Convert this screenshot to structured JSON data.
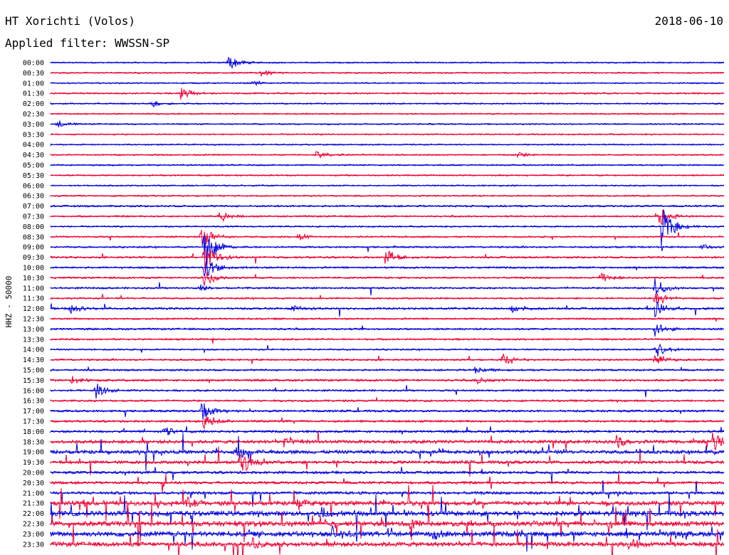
{
  "header": {
    "station": "HT Xorichti (Volos)",
    "date": "2018-06-10",
    "filter_label": "Applied filter: WWSSN-SP"
  },
  "colors": {
    "blue": "#0000dd",
    "red": "#ee0033"
  },
  "chart_data": {
    "type": "line",
    "title": "HT Xorichti (Volos)",
    "ylabel": "HHZ - 50000",
    "line_labels": [
      "00:00",
      "00:30",
      "01:00",
      "01:30",
      "02:00",
      "02:30",
      "03:00",
      "03:30",
      "04:00",
      "04:30",
      "05:00",
      "05:30",
      "06:00",
      "06:30",
      "07:00",
      "07:30",
      "08:00",
      "08:30",
      "09:00",
      "09:30",
      "10:00",
      "10:30",
      "11:00",
      "11:30",
      "12:00",
      "12:30",
      "13:00",
      "13:30",
      "14:00",
      "14:30",
      "15:00",
      "15:30",
      "16:00",
      "16:30",
      "17:00",
      "17:30",
      "18:00",
      "18:30",
      "19:00",
      "19:30",
      "20:00",
      "20:30",
      "21:00",
      "21:30",
      "22:00",
      "22:30",
      "23:00",
      "23:30"
    ],
    "line_colors_cycle": [
      "blue",
      "red"
    ],
    "minutes_per_line": 30,
    "events": [
      {
        "line": "00:00",
        "minute": 7.9,
        "amp": 12
      },
      {
        "line": "00:30",
        "minute": 9.3,
        "amp": 7
      },
      {
        "line": "01:00",
        "minute": 9.0,
        "amp": 4
      },
      {
        "line": "01:30",
        "minute": 5.8,
        "amp": 9
      },
      {
        "line": "02:00",
        "minute": 4.5,
        "amp": 6
      },
      {
        "line": "03:00",
        "minute": 0.3,
        "amp": 6
      },
      {
        "line": "04:30",
        "minute": 11.8,
        "amp": 7
      },
      {
        "line": "04:30",
        "minute": 20.8,
        "amp": 5
      },
      {
        "line": "07:30",
        "minute": 7.5,
        "amp": 7
      },
      {
        "line": "07:30",
        "minute": 27.0,
        "amp": 18
      },
      {
        "line": "08:00",
        "minute": 27.2,
        "amp": 30
      },
      {
        "line": "08:30",
        "minute": 6.7,
        "amp": 18
      },
      {
        "line": "08:30",
        "minute": 11.0,
        "amp": 6
      },
      {
        "line": "09:00",
        "minute": 6.8,
        "amp": 32
      },
      {
        "line": "09:00",
        "minute": 29.0,
        "amp": 5
      },
      {
        "line": "09:30",
        "minute": 6.8,
        "amp": 24
      },
      {
        "line": "09:30",
        "minute": 14.9,
        "amp": 14
      },
      {
        "line": "10:00",
        "minute": 6.8,
        "amp": 20
      },
      {
        "line": "10:30",
        "minute": 6.8,
        "amp": 14
      },
      {
        "line": "10:30",
        "minute": 24.5,
        "amp": 8
      },
      {
        "line": "11:00",
        "minute": 26.9,
        "amp": 16
      },
      {
        "line": "11:00",
        "minute": 6.6,
        "amp": 5
      },
      {
        "line": "11:30",
        "minute": 26.9,
        "amp": 14
      },
      {
        "line": "12:00",
        "minute": 0.8,
        "amp": 8
      },
      {
        "line": "12:00",
        "minute": 10.7,
        "amp": 6
      },
      {
        "line": "12:00",
        "minute": 20.5,
        "amp": 7
      },
      {
        "line": "12:00",
        "minute": 26.9,
        "amp": 14
      },
      {
        "line": "13:00",
        "minute": 26.9,
        "amp": 12
      },
      {
        "line": "14:00",
        "minute": 26.9,
        "amp": 12
      },
      {
        "line": "14:30",
        "minute": 20.1,
        "amp": 12
      },
      {
        "line": "14:30",
        "minute": 26.9,
        "amp": 10
      },
      {
        "line": "15:00",
        "minute": 18.9,
        "amp": 6
      },
      {
        "line": "15:30",
        "minute": 0.9,
        "amp": 7
      },
      {
        "line": "15:30",
        "minute": 18.9,
        "amp": 6
      },
      {
        "line": "16:00",
        "minute": 2.0,
        "amp": 12
      },
      {
        "line": "17:00",
        "minute": 6.7,
        "amp": 16
      },
      {
        "line": "17:30",
        "minute": 6.8,
        "amp": 12
      },
      {
        "line": "18:00",
        "minute": 5.0,
        "amp": 8
      },
      {
        "line": "18:30",
        "minute": 10.4,
        "amp": 10
      },
      {
        "line": "18:30",
        "minute": 25.2,
        "amp": 12
      },
      {
        "line": "18:30",
        "minute": 29.5,
        "amp": 14
      },
      {
        "line": "19:00",
        "minute": 8.2,
        "amp": 14
      },
      {
        "line": "19:30",
        "minute": 8.4,
        "amp": 22
      },
      {
        "line": "21:30",
        "minute": 6.0,
        "amp": 10
      },
      {
        "line": "21:30",
        "minute": 11.0,
        "amp": 10
      },
      {
        "line": "22:00",
        "minute": 12.0,
        "amp": 10
      },
      {
        "line": "22:30",
        "minute": 16.0,
        "amp": 9
      },
      {
        "line": "23:00",
        "minute": 12.5,
        "amp": 12
      },
      {
        "line": "23:00",
        "minute": 17.0,
        "amp": 10
      },
      {
        "line": "23:30",
        "minute": 9.0,
        "amp": 9
      },
      {
        "line": "23:30",
        "minute": 25.8,
        "amp": 8
      }
    ],
    "noise_level": [
      1.2,
      1.2,
      1.2,
      1.4,
      1.2,
      1.2,
      1.2,
      1.2,
      1.2,
      1.2,
      1.3,
      1.3,
      1.2,
      1.3,
      1.6,
      1.4,
      1.3,
      1.4,
      1.5,
      1.6,
      1.6,
      1.5,
      1.6,
      1.5,
      1.8,
      1.5,
      1.6,
      1.5,
      1.4,
      1.5,
      1.6,
      1.8,
      1.6,
      1.7,
      1.8,
      1.8,
      2.0,
      2.8,
      3.0,
      2.6,
      2.2,
      2.2,
      2.4,
      3.6,
      4.0,
      4.0,
      4.2,
      3.8
    ],
    "spike_density": [
      0,
      0,
      0,
      0,
      0,
      0,
      0,
      0,
      0,
      0,
      0,
      0,
      0,
      0,
      0.2,
      0.2,
      0,
      0.1,
      0.2,
      0.3,
      0.2,
      0.3,
      0.4,
      0.3,
      0.6,
      0.4,
      0.3,
      0.2,
      0.2,
      0.3,
      0.3,
      0.3,
      0.3,
      0.3,
      0.5,
      0.6,
      0.8,
      1.6,
      2.0,
      1.6,
      1.2,
      1.2,
      1.4,
      3.2,
      3.6,
      3.8,
      3.6,
      3.0
    ]
  }
}
